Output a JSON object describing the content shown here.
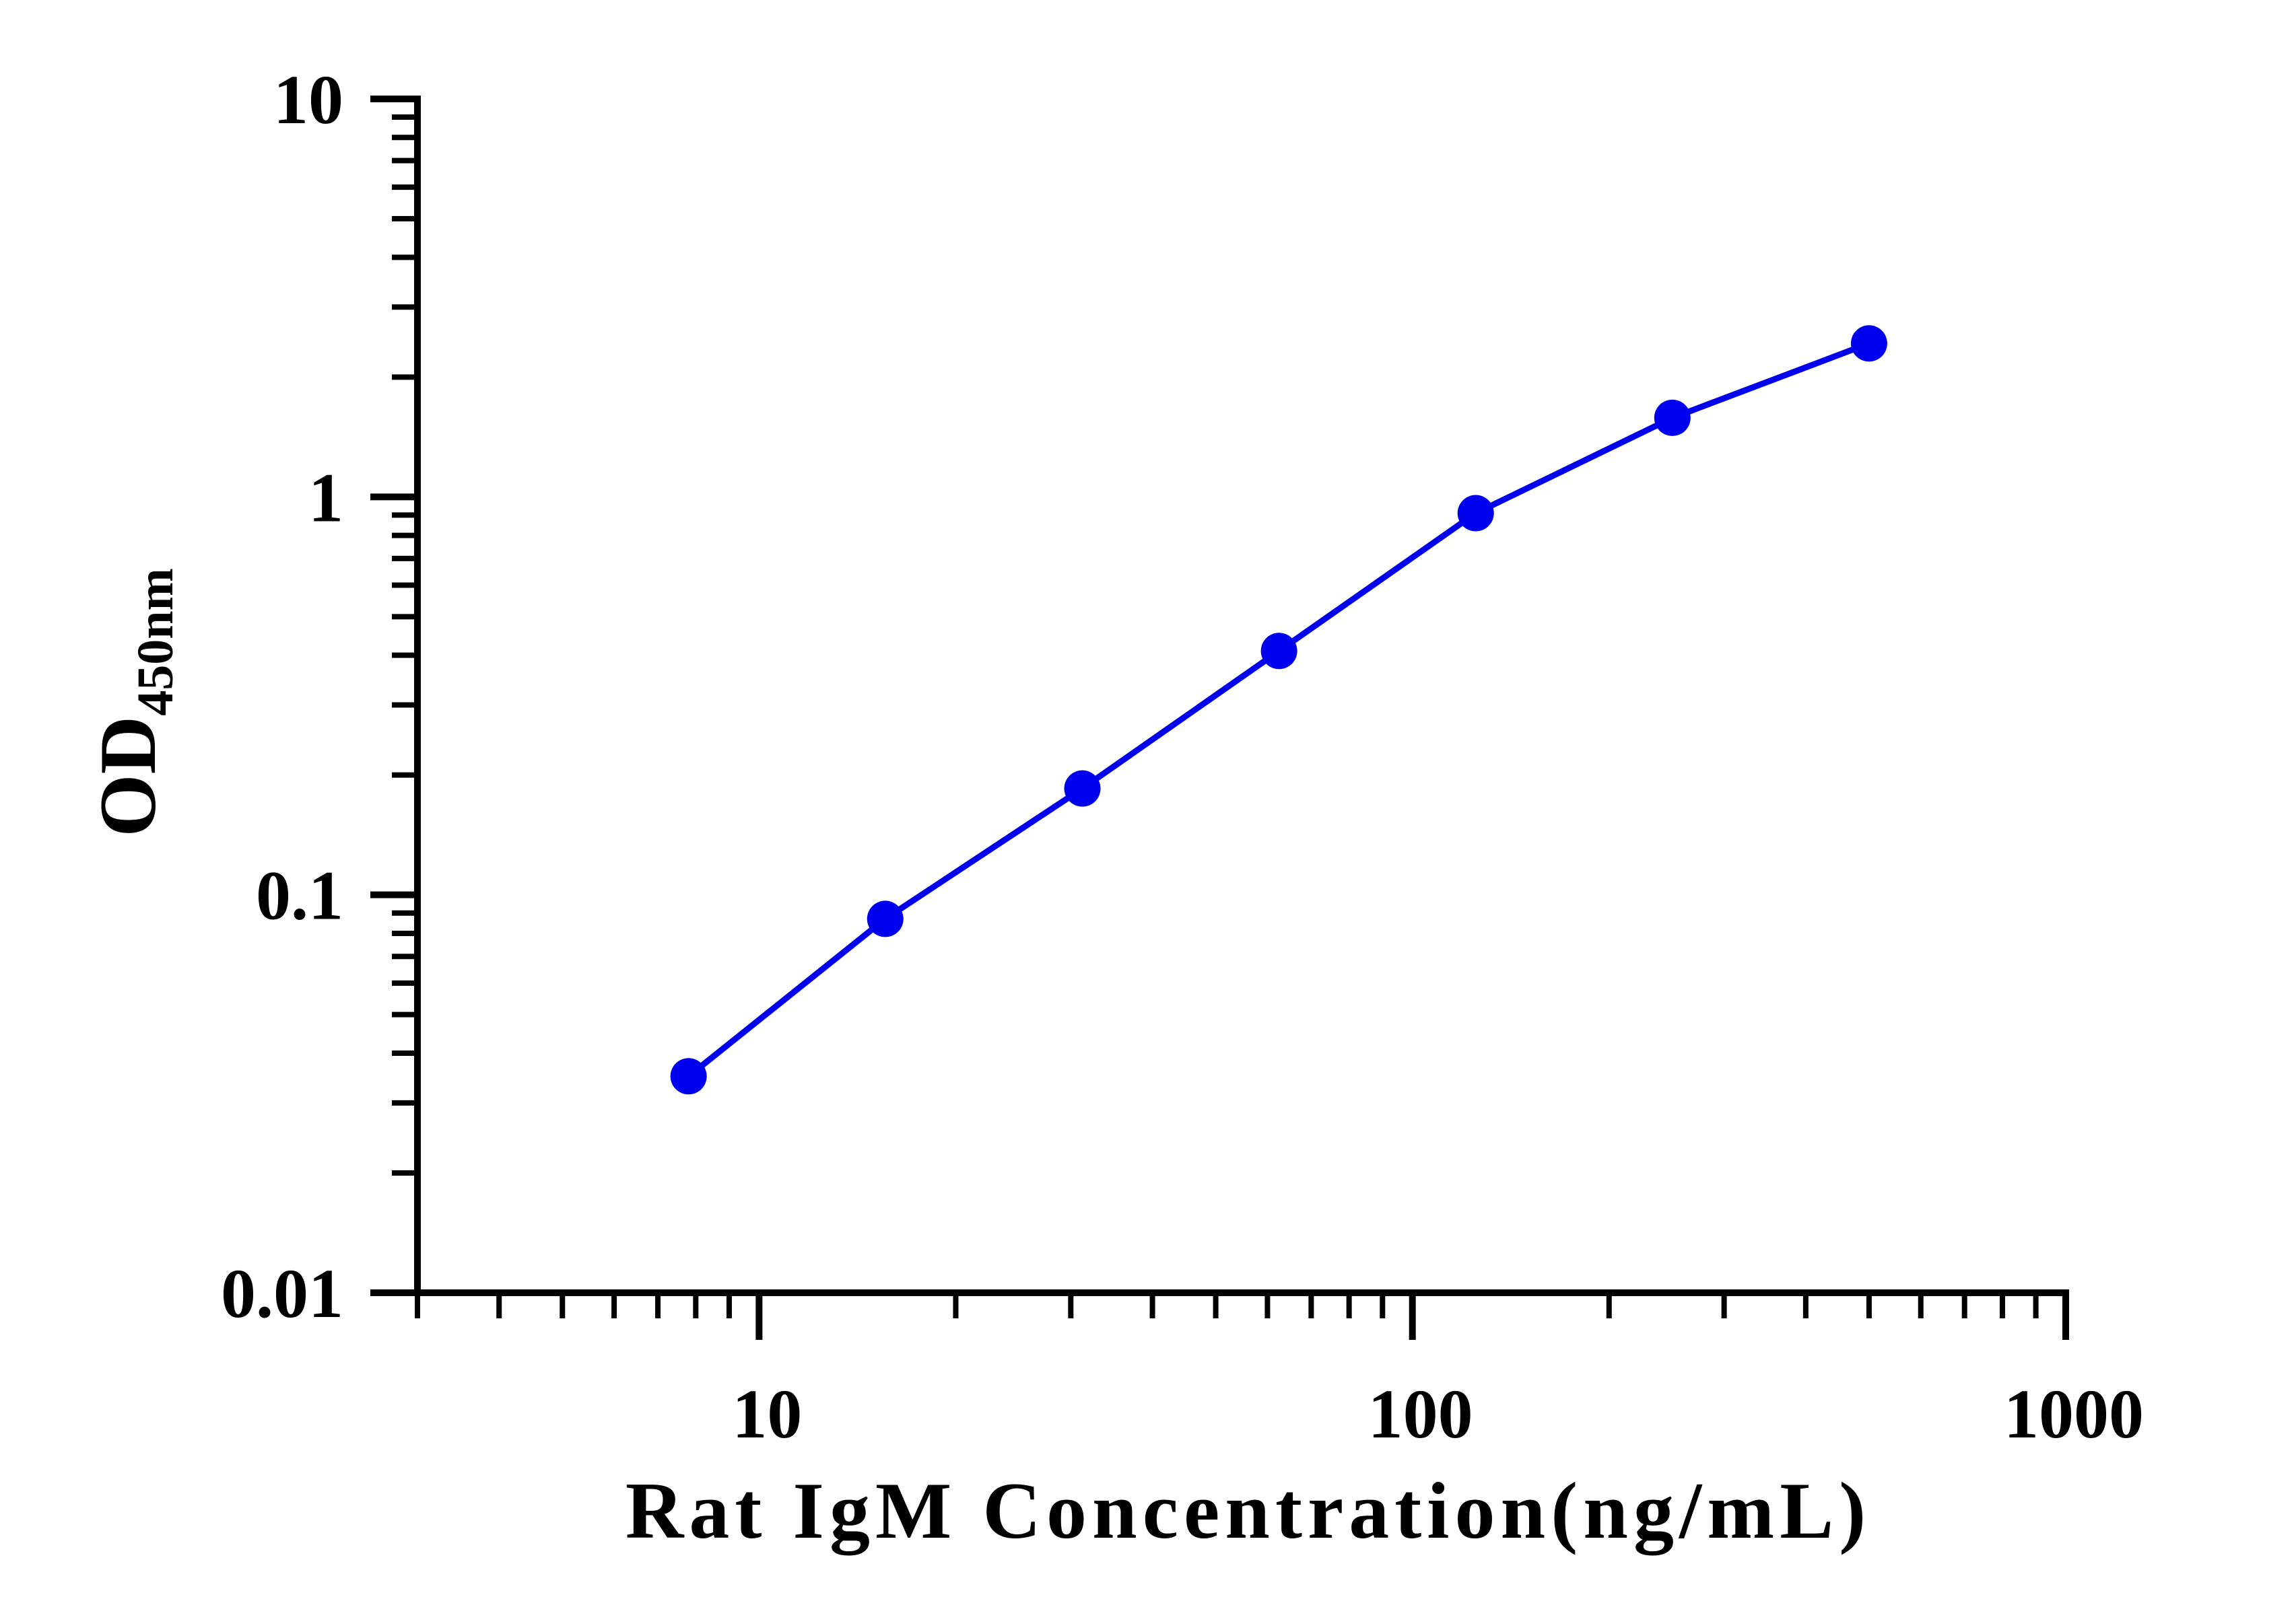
{
  "chart_data": {
    "type": "line",
    "xlabel": "Rat IgM Concentration(ng/mL)",
    "ylabel": "OD",
    "ylabel_subscript": "450nm",
    "x_scale": "log",
    "y_scale": "log",
    "xlim": [
      3,
      1000
    ],
    "ylim": [
      0.01,
      10
    ],
    "x_ticks": [
      {
        "value": 10,
        "label": "10"
      },
      {
        "value": 100,
        "label": "100"
      },
      {
        "value": 1000,
        "label": "1000"
      }
    ],
    "y_ticks": [
      {
        "value": 0.01,
        "label": "0.01"
      },
      {
        "value": 0.1,
        "label": "0.1"
      },
      {
        "value": 1,
        "label": "1"
      },
      {
        "value": 10,
        "label": "10"
      }
    ],
    "grid": false,
    "legend": "none",
    "series": [
      {
        "color": "#0000ee",
        "x": [
          7.8,
          15.6,
          31.25,
          62.5,
          125,
          250,
          500
        ],
        "y": [
          0.035,
          0.087,
          0.185,
          0.41,
          0.91,
          1.58,
          2.43
        ]
      }
    ]
  }
}
